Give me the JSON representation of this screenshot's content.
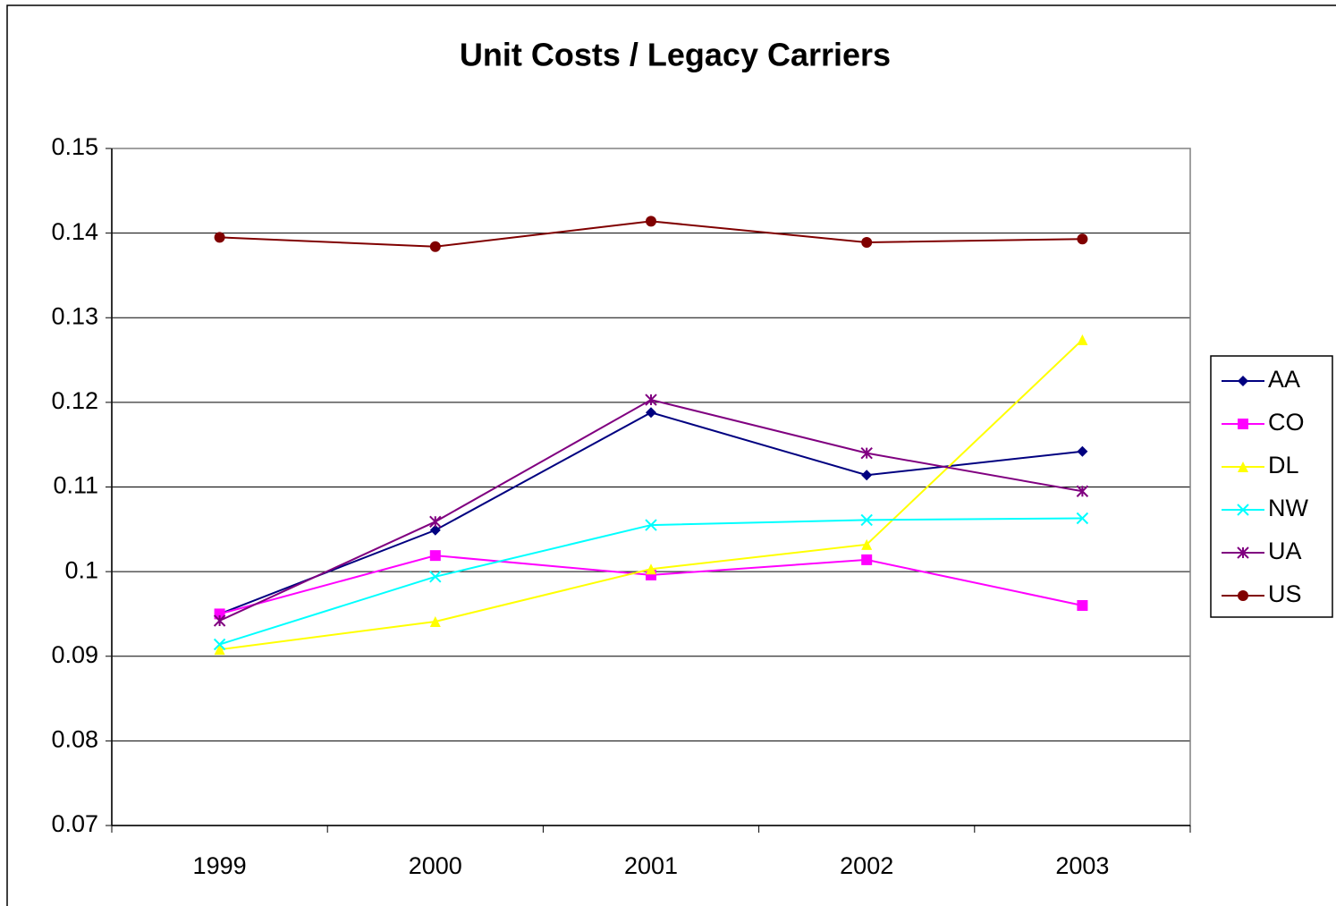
{
  "chart_data": {
    "type": "line",
    "title": "Unit Costs / Legacy Carriers",
    "categories": [
      "1999",
      "2000",
      "2001",
      "2002",
      "2003"
    ],
    "series": [
      {
        "name": "AA",
        "color": "#000080",
        "marker": "diamond",
        "values": [
          0.095,
          0.1049,
          0.1188,
          0.1114,
          0.1142
        ]
      },
      {
        "name": "CO",
        "color": "#ff00ff",
        "marker": "square",
        "values": [
          0.095,
          0.1019,
          0.0996,
          0.1014,
          0.096
        ]
      },
      {
        "name": "DL",
        "color": "#ffff00",
        "marker": "triangle",
        "values": [
          0.0908,
          0.0941,
          0.1003,
          0.1032,
          0.1274
        ]
      },
      {
        "name": "NW",
        "color": "#00ffff",
        "marker": "x",
        "values": [
          0.0914,
          0.0994,
          0.1055,
          0.1061,
          0.1063
        ]
      },
      {
        "name": "UA",
        "color": "#800080",
        "marker": "star",
        "values": [
          0.0942,
          0.1059,
          0.1203,
          0.114,
          0.1095
        ]
      },
      {
        "name": "US",
        "color": "#800000",
        "marker": "circle",
        "values": [
          0.1395,
          0.1384,
          0.1414,
          0.1389,
          0.1393
        ]
      }
    ],
    "ylim": [
      0.07,
      0.15
    ],
    "yticks": [
      0.07,
      0.08,
      0.09,
      0.1,
      0.11,
      0.12,
      0.13,
      0.14,
      0.15
    ],
    "grid": true,
    "legend": "right"
  }
}
